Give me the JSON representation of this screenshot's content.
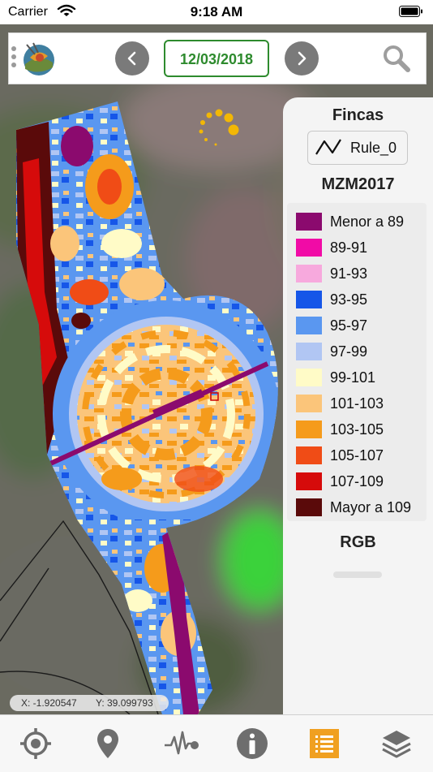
{
  "status_bar": {
    "carrier": "Carrier",
    "time": "9:18 AM"
  },
  "toolbar": {
    "date": "12/03/2018",
    "logo_icon": "farm-logo-icon",
    "search_icon": "search-icon"
  },
  "legend": {
    "header": "Fincas",
    "rule_label": "Rule_0",
    "layer_title": "MZM2017",
    "classes": [
      {
        "label": "Menor a 89",
        "color": "#8b0a6e"
      },
      {
        "label": "89-91",
        "color": "#f10ba6"
      },
      {
        "label": "91-93",
        "color": "#f7a9dd"
      },
      {
        "label": "93-95",
        "color": "#1656e8"
      },
      {
        "label": "95-97",
        "color": "#5a97f0"
      },
      {
        "label": "97-99",
        "color": "#b1c6f3"
      },
      {
        "label": "99-101",
        "color": "#fffbc7"
      },
      {
        "label": "101-103",
        "color": "#fbc57a"
      },
      {
        "label": "103-105",
        "color": "#f59b1b"
      },
      {
        "label": "105-107",
        "color": "#f04c16"
      },
      {
        "label": "107-109",
        "color": "#d60b0b"
      },
      {
        "label": "Mayor a 109",
        "color": "#5a0a0a"
      }
    ],
    "rgb_label": "RGB"
  },
  "coordinates": {
    "x": "X: -1.920547",
    "y": "Y: 39.099793"
  },
  "tabs": [
    {
      "name": "locate",
      "icon": "crosshair-icon"
    },
    {
      "name": "pin",
      "icon": "map-pin-icon"
    },
    {
      "name": "profile",
      "icon": "pulse-icon"
    },
    {
      "name": "info",
      "icon": "info-icon"
    },
    {
      "name": "legend",
      "icon": "list-icon",
      "active": true,
      "active_color": "#f0a021"
    },
    {
      "name": "layers",
      "icon": "layers-icon"
    }
  ]
}
